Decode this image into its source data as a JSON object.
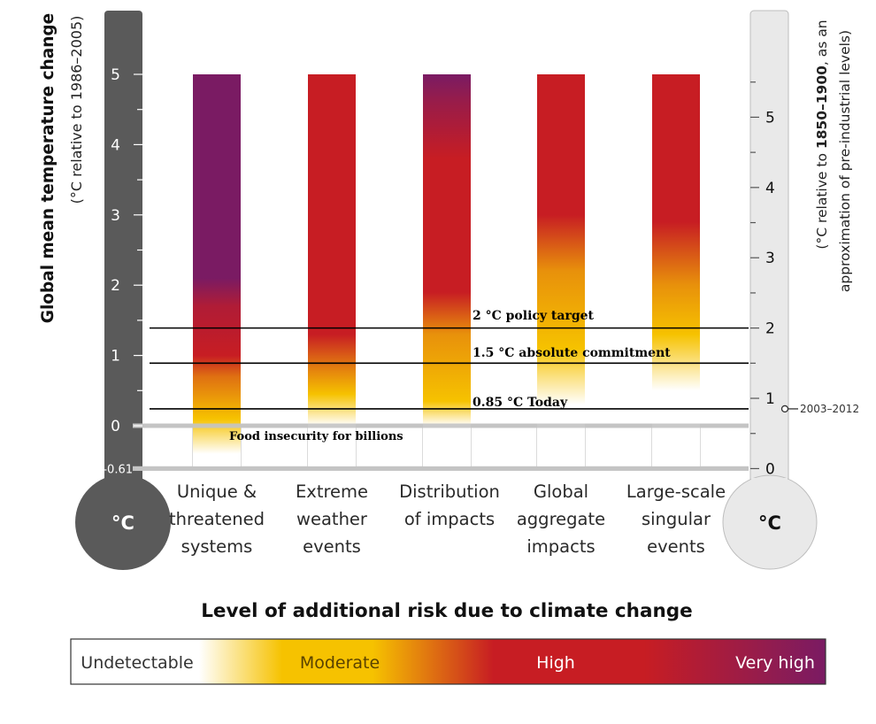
{
  "chart_data": {
    "type": "bar",
    "left_axis": {
      "label_bold": "Global mean temperature change",
      "label_sub": "(°C relative to 1986–2005)",
      "ticks": [
        0,
        1,
        2,
        3,
        4,
        5
      ],
      "extra_tick": "-0.61",
      "range": [
        -0.61,
        5
      ],
      "unit_symbol": "°C"
    },
    "right_axis": {
      "label_pre": "(°C relative to ",
      "label_bold": "1850–1900",
      "label_post": ", as an",
      "label_line2": "approximation of pre-industrial levels)",
      "ticks": [
        0,
        1,
        2,
        3,
        4,
        5
      ],
      "offset_from_left": 0.61,
      "unit_symbol": "°C",
      "marker": {
        "value": 0.85,
        "label": "2003–2012"
      }
    },
    "categories": [
      [
        "Unique &",
        "threatened",
        "systems"
      ],
      [
        "Extreme",
        "weather",
        "events"
      ],
      [
        "Distribution",
        "of impacts"
      ],
      [
        "Global",
        "aggregate",
        "impacts"
      ],
      [
        "Large-scale",
        "singular",
        "events"
      ]
    ],
    "bar_top": 5,
    "risk_gradients": [
      [
        {
          "t": -0.4,
          "level": 0
        },
        {
          "t": 0.1,
          "level": 1
        },
        {
          "t": 0.7,
          "level": 1.5
        },
        {
          "t": 1.0,
          "level": 2
        },
        {
          "t": 1.7,
          "level": 2.3
        },
        {
          "t": 2.1,
          "level": 3
        },
        {
          "t": 5,
          "level": 3
        }
      ],
      [
        {
          "t": 0,
          "level": 0
        },
        {
          "t": 0.45,
          "level": 1
        },
        {
          "t": 0.9,
          "level": 1.5
        },
        {
          "t": 1.3,
          "level": 2
        },
        {
          "t": 5,
          "level": 2
        }
      ],
      [
        {
          "t": 0,
          "level": 0
        },
        {
          "t": 0.35,
          "level": 1
        },
        {
          "t": 1.3,
          "level": 1.3
        },
        {
          "t": 1.9,
          "level": 2
        },
        {
          "t": 3.8,
          "level": 2
        },
        {
          "t": 4.6,
          "level": 2.6
        },
        {
          "t": 5,
          "level": 3
        }
      ],
      [
        {
          "t": 0.3,
          "level": 0
        },
        {
          "t": 1.1,
          "level": 1
        },
        {
          "t": 2.2,
          "level": 1.3
        },
        {
          "t": 3.0,
          "level": 2
        },
        {
          "t": 5,
          "level": 2
        }
      ],
      [
        {
          "t": 0.5,
          "level": 0
        },
        {
          "t": 1.3,
          "level": 1
        },
        {
          "t": 2.0,
          "level": 1.3
        },
        {
          "t": 2.9,
          "level": 2
        },
        {
          "t": 5,
          "level": 2
        }
      ]
    ],
    "reference_lines": [
      {
        "value": 1.39,
        "label": "2 °C policy target"
      },
      {
        "value": 0.89,
        "label": "1.5 °C absolute commitment"
      },
      {
        "value": 0.24,
        "label": "0.85 °C Today"
      }
    ],
    "annotation": "Food insecurity for billions",
    "legend": {
      "title": "Level of additional risk due to climate change",
      "labels": [
        "Undetectable",
        "Moderate",
        "High",
        "Very high"
      ],
      "colors": [
        "#ffffff",
        "#f6c200",
        "#c71d23",
        "#7a1b63"
      ]
    },
    "colors": {
      "left_thermometer": "#5a5a5a",
      "right_thermometer": "#e9e9e9",
      "grid": "#cfcfcf",
      "reference_line": "#000000"
    }
  }
}
